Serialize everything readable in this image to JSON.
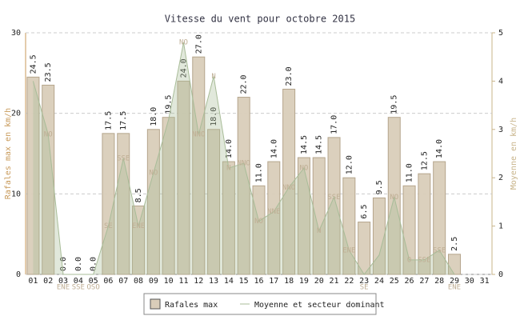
{
  "chart_data": {
    "type": "bar",
    "title": "Vitesse du vent pour octobre 2015",
    "y_label": "Rafales max en km/h",
    "y2_label": "Moyenne en km/h",
    "categories": [
      "01",
      "02",
      "03",
      "04",
      "05",
      "06",
      "07",
      "08",
      "09",
      "10",
      "11",
      "12",
      "13",
      "14",
      "15",
      "16",
      "17",
      "18",
      "19",
      "20",
      "21",
      "22",
      "23",
      "24",
      "25",
      "26",
      "27",
      "28",
      "29",
      "30",
      "31"
    ],
    "ylim": [
      0,
      30
    ],
    "yticks": [
      0,
      10,
      20,
      30
    ],
    "y2lim": [
      0,
      5
    ],
    "y2ticks": [
      0,
      1,
      2,
      3,
      4,
      5
    ],
    "grid": true,
    "legend": "bottom",
    "series": [
      {
        "name": "Rafales max",
        "color": "#d9cdb9",
        "values": [
          24.5,
          23.5,
          0,
          0,
          0,
          17.5,
          17.5,
          8.5,
          18,
          19.5,
          24,
          27,
          18,
          14,
          22,
          11,
          14,
          23,
          14.5,
          14.5,
          17,
          12,
          6.5,
          9.5,
          19.5,
          11,
          12.5,
          14,
          2.5,
          null,
          null
        ],
        "value_labels": [
          "24.5",
          "23.5",
          "0.0",
          "0.0",
          "0.0",
          "17.5",
          "17.5",
          "8.5",
          "18.0",
          "19.5",
          "24.0",
          "27.0",
          "18.0",
          "14.0",
          "22.0",
          "11.0",
          "14.0",
          "23.0",
          "14.5",
          "14.5",
          "17.0",
          "12.0",
          "6.5",
          "9.5",
          "19.5",
          "11.0",
          "12.5",
          "14.0",
          "2.5",
          null,
          null
        ]
      },
      {
        "name": "Moyenne et secteur dominant",
        "color": "#a8bc98",
        "axis": "y2",
        "values": [
          4.0,
          2.9,
          0,
          0,
          0,
          1.0,
          2.4,
          1.0,
          2.1,
          3.2,
          4.8,
          2.9,
          4.1,
          2.2,
          2.3,
          1.1,
          1.3,
          1.8,
          2.2,
          0.9,
          1.6,
          0.5,
          0,
          0.4,
          1.6,
          0.3,
          0.3,
          0.5,
          0,
          null,
          null
        ],
        "labels": [
          null,
          "NO",
          "ENE",
          "SSE",
          "OSO",
          "SE",
          "SSE",
          "ENE",
          "NO",
          null,
          "NO",
          "NNO",
          "N",
          "N",
          "NNO",
          "NO",
          "NNE",
          "NNO",
          "NO",
          "N",
          "SSE",
          "ENE",
          "SE",
          null,
          "NO",
          "O",
          "SSE",
          "SSE",
          "ENE",
          null,
          null
        ]
      }
    ]
  }
}
